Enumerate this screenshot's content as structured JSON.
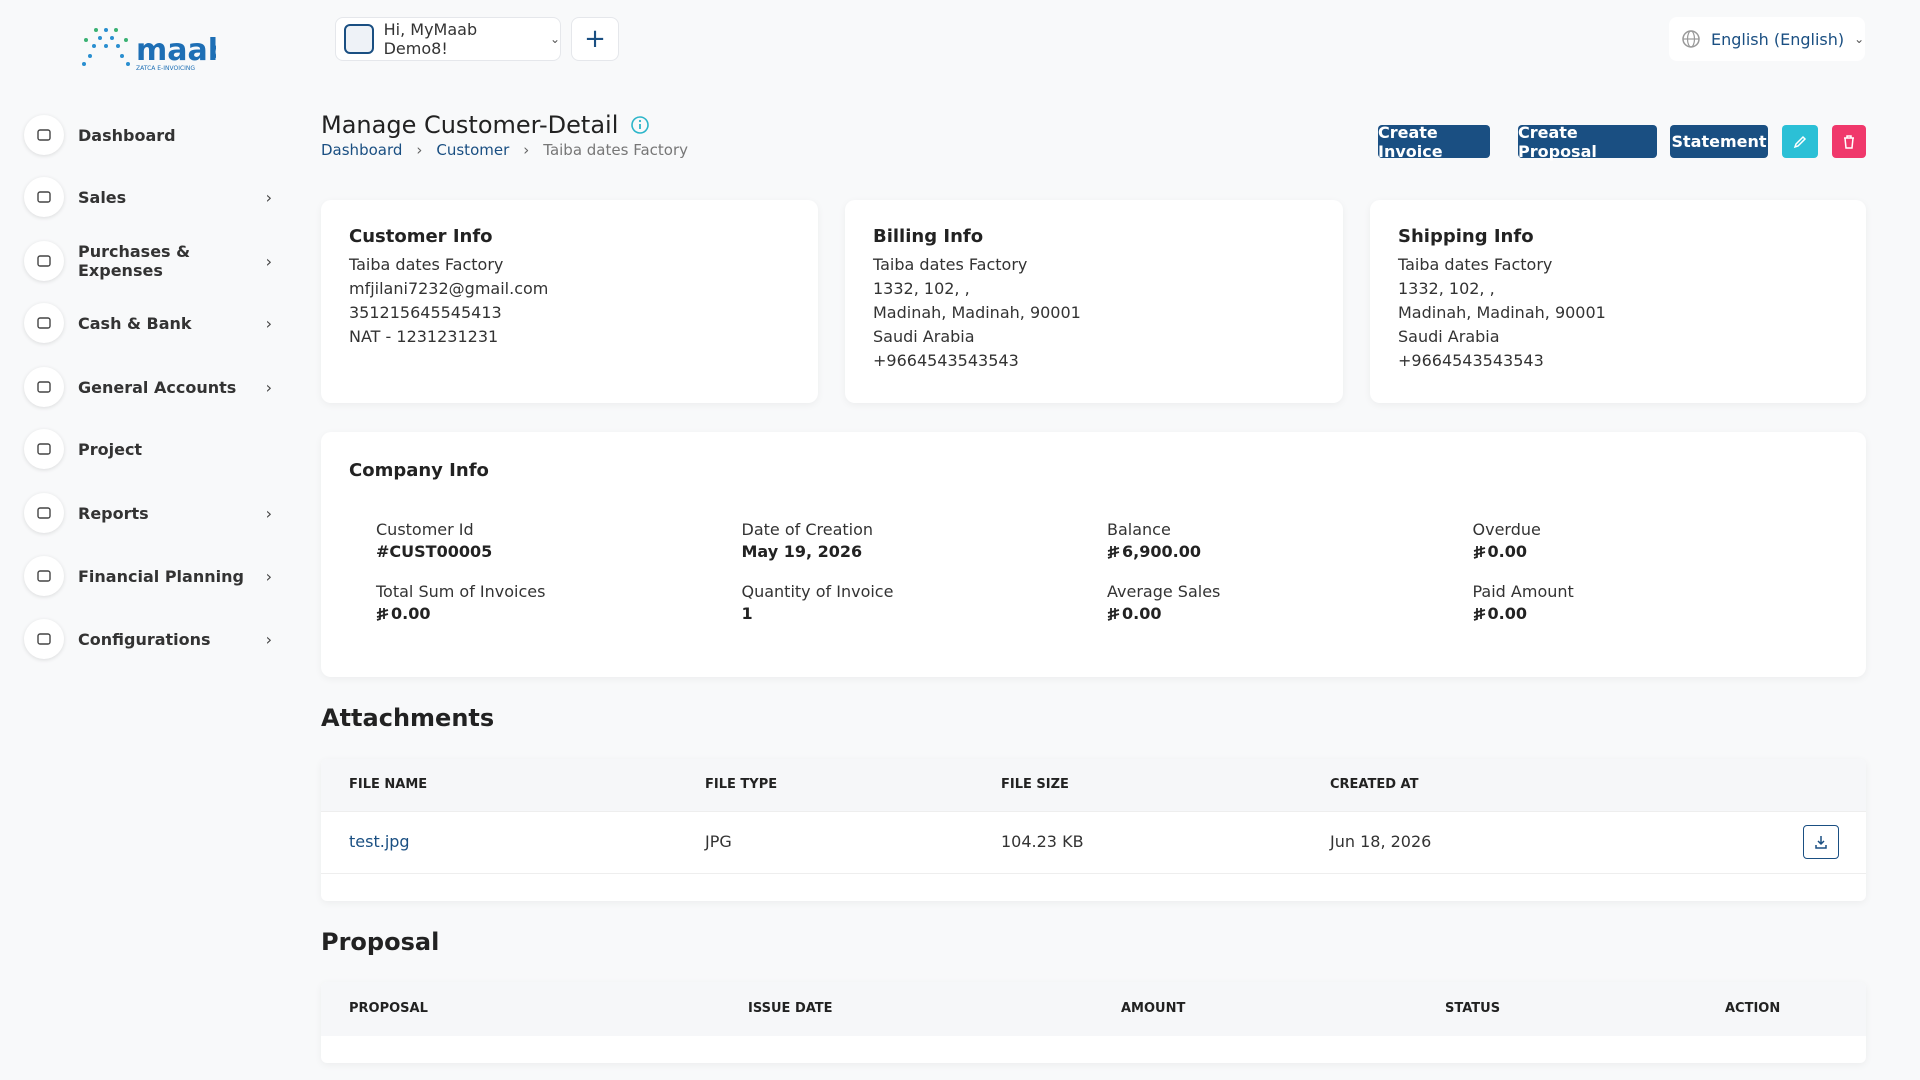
{
  "header": {
    "greeting": "Hi, MyMaab Demo8!",
    "language": "English (English)"
  },
  "sidebar": {
    "items": [
      "Dashboard",
      "Sales",
      "Purchases & Expenses",
      "Cash & Bank",
      "General Accounts",
      "Project",
      "Reports",
      "Financial Planning",
      "Configurations"
    ]
  },
  "page": {
    "title": "Manage Customer-Detail",
    "breadcrumb": [
      "Dashboard",
      "Customer",
      "Taiba dates Factory"
    ],
    "buttons": [
      "Create Invoice",
      "Create Proposal",
      "Statement"
    ]
  },
  "customer_info": {
    "title": "Customer Info",
    "lines": [
      "Taiba dates Factory",
      "mfjilani7232@gmail.com",
      "351215645545413",
      "NAT - 1231231231"
    ]
  },
  "billing_info": {
    "title": "Billing Info",
    "lines": [
      "Taiba dates Factory",
      "1332, 102, ,",
      "Madinah, Madinah, 90001",
      "Saudi Arabia",
      "+9664543543543"
    ]
  },
  "shipping_info": {
    "title": "Shipping Info",
    "lines": [
      "Taiba dates Factory",
      "1332, 102, ,",
      "Madinah, Madinah, 90001",
      "Saudi Arabia",
      "+9664543543543"
    ]
  },
  "company_info": {
    "title": "Company Info",
    "fields": [
      {
        "label": "Customer Id",
        "value": "#CUST00005"
      },
      {
        "label": "Date of Creation",
        "value": "May 19, 2026"
      },
      {
        "label": "Balance",
        "value": "6,900.00"
      },
      {
        "label": "Overdue",
        "value": "0.00"
      },
      {
        "label": "Total Sum of Invoices",
        "value": "0.00"
      },
      {
        "label": "Quantity of Invoice",
        "value": "1"
      },
      {
        "label": "Average Sales",
        "value": "0.00"
      },
      {
        "label": "Paid Amount",
        "value": "0.00"
      }
    ]
  },
  "attachments": {
    "title": "Attachments",
    "columns": [
      "FILE NAME",
      "FILE TYPE",
      "FILE SIZE",
      "CREATED AT"
    ],
    "rows": [
      [
        "test.jpg",
        "JPG",
        "104.23 KB",
        "Jun 18, 2026"
      ]
    ]
  },
  "proposal": {
    "title": "Proposal",
    "columns": [
      "PROPOSAL",
      "ISSUE DATE",
      "AMOUNT",
      "STATUS",
      "ACTION"
    ]
  }
}
